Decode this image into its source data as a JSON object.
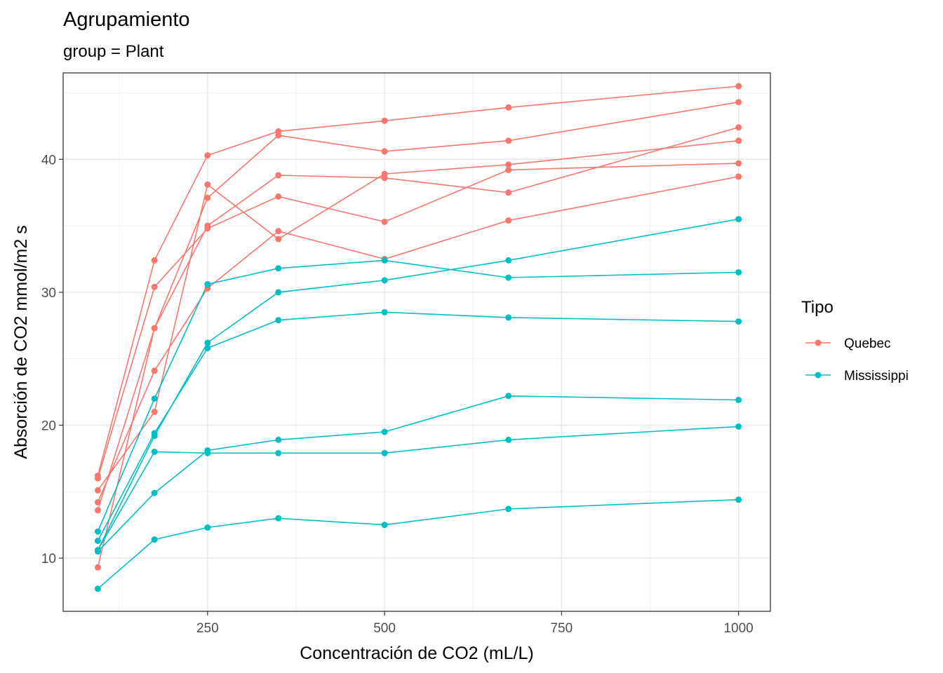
{
  "chart_data": {
    "type": "line",
    "title": "Agrupamiento",
    "subtitle": "group = Plant",
    "xlabel": "Concentración de CO2 (mL/L)",
    "ylabel": "Absorción de CO2 mmol/m2 s",
    "xlim": [
      46,
      1045
    ],
    "ylim": [
      6.0,
      46.5
    ],
    "x_ticks": [
      250,
      500,
      750,
      1000
    ],
    "y_ticks": [
      10,
      20,
      30,
      40
    ],
    "grid": true,
    "legend": {
      "title": "Tipo",
      "placement": "right",
      "entries": [
        "Quebec",
        "Mississippi"
      ]
    },
    "colors": {
      "Quebec": "#F8766D",
      "Mississippi": "#00BFC4"
    },
    "x": [
      95,
      175,
      250,
      350,
      500,
      675,
      1000
    ],
    "series": [
      {
        "group": "Quebec",
        "values": [
          16.0,
          30.4,
          34.8,
          37.2,
          35.3,
          39.2,
          39.7
        ]
      },
      {
        "group": "Quebec",
        "values": [
          13.6,
          27.3,
          37.1,
          41.8,
          40.6,
          41.4,
          44.3
        ]
      },
      {
        "group": "Quebec",
        "values": [
          16.2,
          32.4,
          40.3,
          42.1,
          42.9,
          43.9,
          45.5
        ]
      },
      {
        "group": "Quebec",
        "values": [
          14.2,
          24.1,
          30.3,
          34.6,
          32.5,
          35.4,
          38.7
        ]
      },
      {
        "group": "Quebec",
        "values": [
          9.3,
          27.3,
          35.0,
          38.8,
          38.6,
          37.5,
          42.4
        ]
      },
      {
        "group": "Quebec",
        "values": [
          15.1,
          21.0,
          38.1,
          34.0,
          38.9,
          39.6,
          41.4
        ]
      },
      {
        "group": "Mississippi",
        "values": [
          10.6,
          19.2,
          26.2,
          30.0,
          30.9,
          32.4,
          35.5
        ]
      },
      {
        "group": "Mississippi",
        "values": [
          12.0,
          22.0,
          30.6,
          31.8,
          32.4,
          31.1,
          31.5
        ]
      },
      {
        "group": "Mississippi",
        "values": [
          11.3,
          19.4,
          25.8,
          27.9,
          28.5,
          28.1,
          27.8
        ]
      },
      {
        "group": "Mississippi",
        "values": [
          10.5,
          14.9,
          18.1,
          18.9,
          19.5,
          22.2,
          21.9
        ]
      },
      {
        "group": "Mississippi",
        "values": [
          7.7,
          11.4,
          12.3,
          13.0,
          12.5,
          13.7,
          14.4
        ]
      },
      {
        "group": "Mississippi",
        "values": [
          10.6,
          18.0,
          17.9,
          17.9,
          17.9,
          18.9,
          19.9
        ]
      }
    ]
  }
}
